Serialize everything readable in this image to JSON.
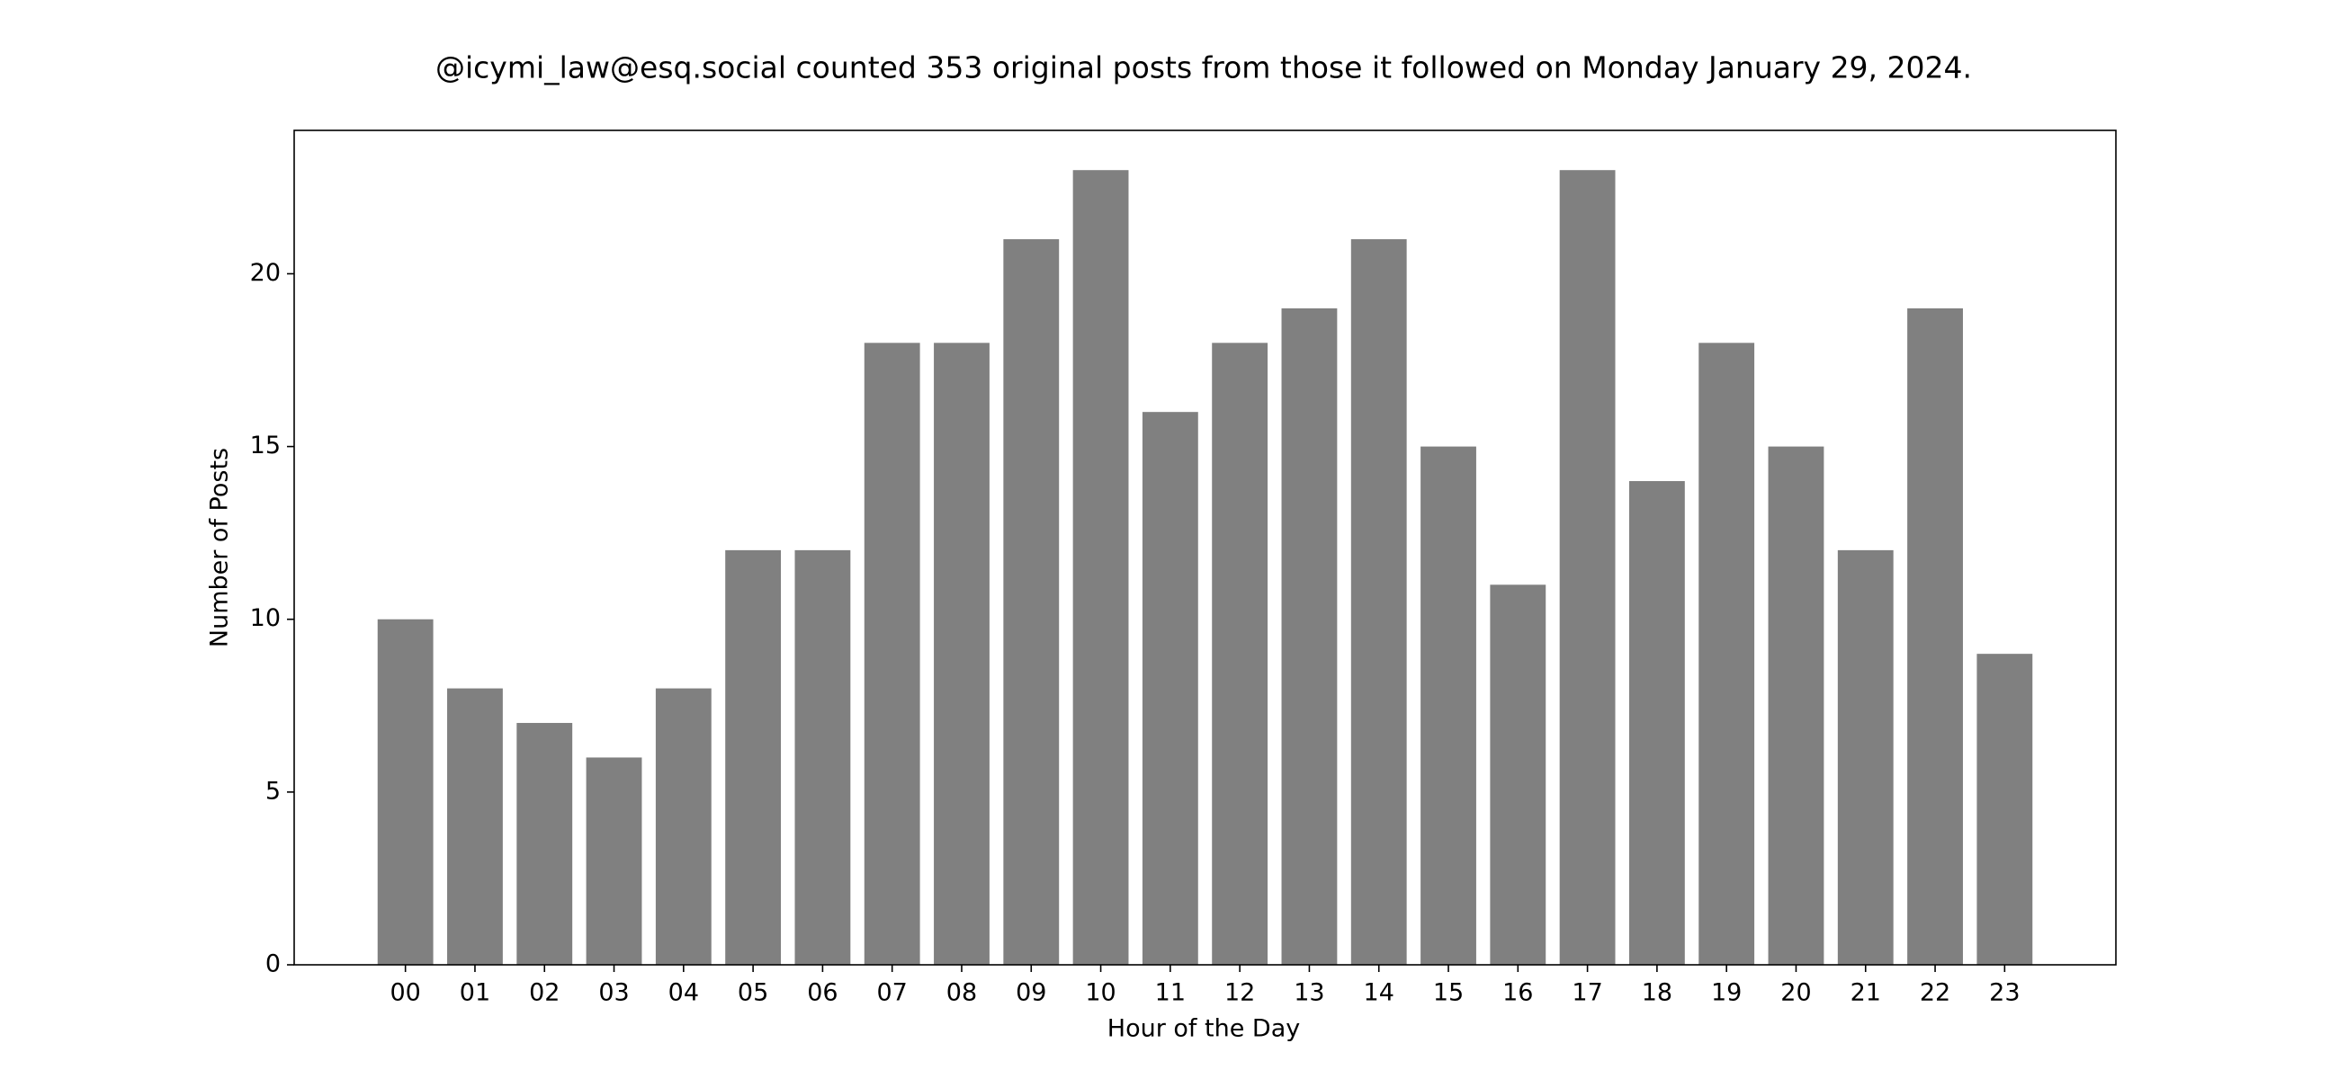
{
  "chart_data": {
    "type": "bar",
    "title": "@icymi_law@esq.social counted 353 original posts from those it followed on Monday January 29, 2024.",
    "x_label": "Hour of the Day",
    "y_label": "Number of Posts",
    "categories": [
      "00",
      "01",
      "02",
      "03",
      "04",
      "05",
      "06",
      "07",
      "08",
      "09",
      "10",
      "11",
      "12",
      "13",
      "14",
      "15",
      "16",
      "17",
      "18",
      "19",
      "20",
      "21",
      "22",
      "23"
    ],
    "values": [
      10,
      8,
      7,
      6,
      8,
      12,
      12,
      18,
      18,
      21,
      23,
      16,
      18,
      19,
      21,
      15,
      11,
      23,
      14,
      18,
      15,
      12,
      19,
      9
    ],
    "color": "#808080",
    "ylim": [
      0,
      24.15
    ],
    "yticks": [
      0,
      5,
      10,
      15,
      20
    ],
    "grid": false
  }
}
